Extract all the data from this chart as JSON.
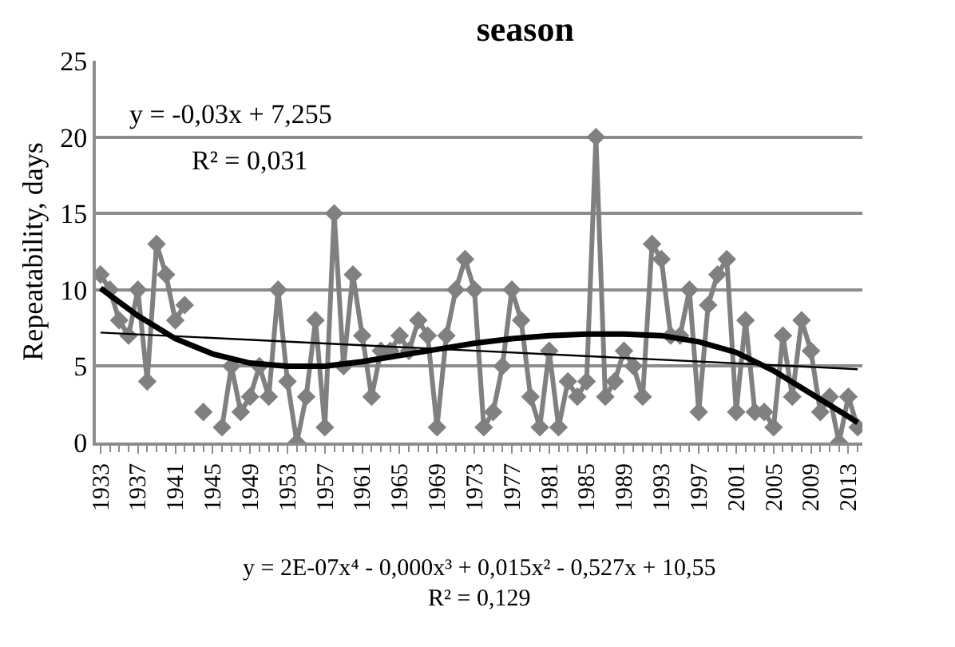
{
  "chart_data": {
    "type": "line",
    "title": "season",
    "ylabel": "Repeatability, days",
    "x": [
      1933,
      1934,
      1935,
      1936,
      1937,
      1938,
      1939,
      1940,
      1941,
      1942,
      1943,
      1944,
      1945,
      1946,
      1947,
      1948,
      1949,
      1950,
      1951,
      1952,
      1953,
      1954,
      1955,
      1956,
      1957,
      1958,
      1959,
      1960,
      1961,
      1962,
      1963,
      1964,
      1965,
      1966,
      1967,
      1968,
      1969,
      1970,
      1971,
      1972,
      1973,
      1974,
      1975,
      1976,
      1977,
      1978,
      1979,
      1980,
      1981,
      1982,
      1983,
      1984,
      1985,
      1986,
      1987,
      1988,
      1989,
      1990,
      1991,
      1992,
      1993,
      1994,
      1995,
      1996,
      1997,
      1998,
      1999,
      2000,
      2001,
      2002,
      2003,
      2004,
      2005,
      2006,
      2007,
      2008,
      2009,
      2010,
      2011,
      2012,
      2013,
      2014
    ],
    "series": [
      {
        "color": "#808080",
        "marker": "diamond",
        "values": [
          11,
          10,
          8,
          7,
          10,
          4,
          13,
          11,
          8,
          9,
          null,
          2,
          null,
          1,
          5,
          2,
          3,
          5,
          3,
          10,
          4,
          0,
          3,
          8,
          1,
          15,
          5,
          11,
          7,
          3,
          6,
          6,
          7,
          6,
          8,
          7,
          1,
          7,
          10,
          12,
          10,
          1,
          2,
          5,
          10,
          8,
          3,
          1,
          6,
          1,
          4,
          3,
          4,
          20,
          3,
          4,
          6,
          5,
          3,
          13,
          12,
          7,
          7,
          10,
          2,
          9,
          11,
          12,
          2,
          8,
          2,
          2,
          1,
          7,
          3,
          8,
          6,
          2,
          3,
          0,
          3,
          1
        ]
      },
      {
        "type": "line",
        "color": "#000000",
        "marker": "none",
        "x": [
          1933,
          2014
        ],
        "values": [
          7.2,
          4.8
        ]
      },
      {
        "type": "line",
        "color": "#000000",
        "marker": "none",
        "x": [
          1933,
          1937,
          1941,
          1945,
          1949,
          1953,
          1957,
          1961,
          1965,
          1969,
          1973,
          1977,
          1981,
          1985,
          1989,
          1993,
          1997,
          2001,
          2005,
          2009,
          2013,
          2014
        ],
        "values": [
          10.1,
          8.3,
          6.8,
          5.8,
          5.2,
          5.0,
          5.0,
          5.3,
          5.7,
          6.1,
          6.5,
          6.8,
          7.0,
          7.1,
          7.1,
          7.0,
          6.6,
          5.9,
          4.7,
          3.2,
          1.7,
          1.3
        ]
      }
    ],
    "xlim": [
      1932.5,
      2014.5
    ],
    "xticks": [
      1933,
      1937,
      1941,
      1945,
      1949,
      1953,
      1957,
      1961,
      1965,
      1969,
      1973,
      1977,
      1981,
      1985,
      1989,
      1993,
      1997,
      2001,
      2005,
      2009,
      2013
    ],
    "ylim": [
      0,
      25
    ],
    "yticks": [
      0,
      5,
      10,
      15,
      20,
      25
    ],
    "grid": "y",
    "line_style": "solid",
    "annotations": [
      "y = -0,03x + 7,255",
      "R² = 0,031",
      "y = 2E-07x⁴ - 0,000x³ + 0,015x² - 0,527x + 10,55",
      "R² = 0,129"
    ]
  }
}
